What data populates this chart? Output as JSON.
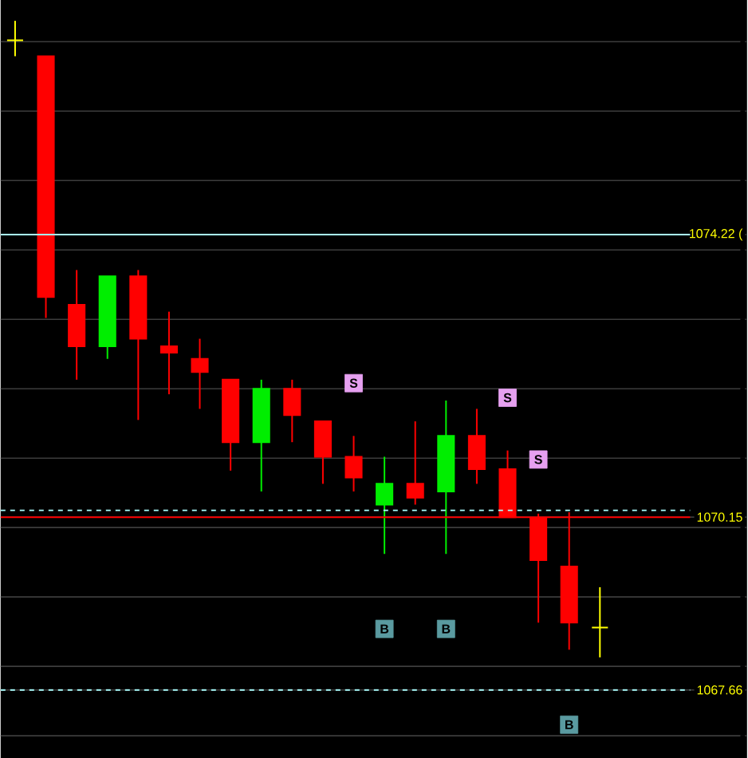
{
  "chart_data": {
    "type": "candlestick",
    "categories": [
      null,
      null,
      null,
      null,
      null,
      null,
      null,
      null,
      null,
      null,
      null,
      null,
      null,
      null,
      null,
      null,
      null,
      null,
      null,
      null
    ],
    "ohlc": [
      [
        1077.02,
        1077.3,
        1076.79,
        1077.02
      ],
      [
        1076.79,
        1076.79,
        1073.02,
        1073.32
      ],
      [
        1073.21,
        1073.71,
        1072.13,
        1072.61
      ],
      [
        1072.61,
        1073.62,
        1072.43,
        1073.62
      ],
      [
        1073.62,
        1073.71,
        1071.55,
        1072.72
      ],
      [
        1072.61,
        1073.11,
        1071.92,
        1072.52
      ],
      [
        1072.43,
        1072.72,
        1071.71,
        1072.24
      ],
      [
        1072.13,
        1072.13,
        1070.82,
        1071.23
      ],
      [
        1071.23,
        1072.13,
        1070.52,
        1072.0
      ],
      [
        1072.0,
        1072.13,
        1071.23,
        1071.62
      ],
      [
        1071.53,
        1071.53,
        1070.63,
        1071.02
      ],
      [
        1071.02,
        1071.32,
        1070.52,
        1070.72
      ],
      [
        1070.33,
        1071.02,
        1069.62,
        1070.63
      ],
      [
        1070.63,
        1071.53,
        1070.33,
        1070.43
      ],
      [
        1070.52,
        1071.83,
        1069.62,
        1071.32
      ],
      [
        1071.32,
        1071.71,
        1070.63,
        1070.84
      ],
      [
        1070.84,
        1071.11,
        1070.15,
        1070.15
      ],
      [
        1070.13,
        1070.2,
        1068.63,
        1069.53
      ],
      [
        1069.44,
        1070.22,
        1068.24,
        1068.63
      ],
      [
        1068.56,
        1069.14,
        1068.13,
        1068.56
      ]
    ],
    "colors": [
      "#ffff00",
      "#ff0000",
      "#ff0000",
      "#00ee00",
      "#ff0000",
      "#ff0000",
      "#ff0000",
      "#ff0000",
      "#00ee00",
      "#ff0000",
      "#ff0000",
      "#ff0000",
      "#00ee00",
      "#ff0000",
      "#00ee00",
      "#ff0000",
      "#ff0000",
      "#ff0000",
      "#ff0000",
      "#ffff00"
    ],
    "series": [
      {
        "name": "S",
        "type": "scatter",
        "color": "#e6a0f0",
        "values": [
          null,
          null,
          null,
          null,
          null,
          null,
          null,
          null,
          null,
          null,
          null,
          1072.08,
          null,
          null,
          null,
          null,
          1071.87,
          1070.98,
          null,
          null
        ]
      },
      {
        "name": "B",
        "type": "scatter",
        "color": "#5a9aa0",
        "values": [
          null,
          null,
          null,
          null,
          null,
          null,
          null,
          null,
          null,
          null,
          null,
          null,
          1068.54,
          null,
          1068.54,
          null,
          null,
          null,
          1067.16,
          null
        ]
      }
    ],
    "marker": "square",
    "ylim": [
      1066.68,
      1077.6
    ],
    "yticks": [
      {
        "value": 1067,
        "label": null
      },
      {
        "value": 1067.66,
        "label": "1067.66"
      },
      {
        "value": 1068,
        "label": null
      },
      {
        "value": 1069,
        "label": null
      },
      {
        "value": 1070,
        "label": null
      },
      {
        "value": 1070.15,
        "label": "1070.15"
      },
      {
        "value": 1071,
        "label": null
      },
      {
        "value": 1072,
        "label": null
      },
      {
        "value": 1073,
        "label": null
      },
      {
        "value": 1074,
        "label": null
      },
      {
        "value": 1074.22,
        "label": "1074.22 ("
      },
      {
        "value": 1075,
        "label": null
      },
      {
        "value": 1076,
        "label": null
      },
      {
        "value": 1077,
        "label": null
      }
    ],
    "grid": "y",
    "tick_labels": "y",
    "ref_lines": [
      {
        "axis": "y",
        "value": 1074.22,
        "color": "#aaffff"
      },
      {
        "axis": "y",
        "value": 1070.25,
        "color": "#aaffff",
        "line_style": "dashed"
      },
      {
        "axis": "y",
        "value": 1070.15,
        "color": "#ff0000"
      },
      {
        "axis": "y",
        "value": 1067.66,
        "color": "#aaffff",
        "line_style": "dashed"
      }
    ]
  }
}
